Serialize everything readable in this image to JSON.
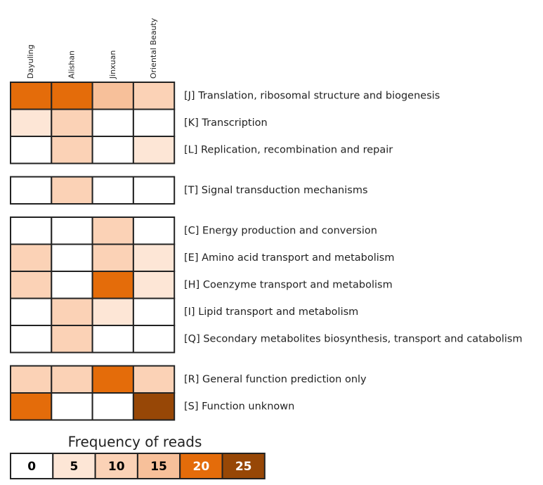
{
  "chart_data": {
    "type": "heatmap",
    "columns": [
      "Dayuling",
      "Alishan",
      "Jinxuan",
      "Oriental Beauty"
    ],
    "groups": [
      {
        "categories": [
          "[J] Translation, ribosomal structure and biogenesis",
          "[K] Transcription",
          "[L] Replication, recombination and repair"
        ],
        "values": [
          [
            20,
            20,
            15,
            10
          ],
          [
            5,
            10,
            0,
            0
          ],
          [
            0,
            10,
            0,
            5
          ]
        ]
      },
      {
        "categories": [
          "[T] Signal transduction mechanisms"
        ],
        "values": [
          [
            0,
            10,
            0,
            0
          ]
        ]
      },
      {
        "categories": [
          "[C] Energy production and conversion",
          "[E] Amino acid transport and metabolism",
          "[H] Coenzyme transport and metabolism",
          "[I] Lipid transport and metabolism",
          "[Q] Secondary metabolites biosynthesis, transport and catabolism"
        ],
        "values": [
          [
            0,
            0,
            10,
            0
          ],
          [
            10,
            0,
            10,
            5
          ],
          [
            10,
            0,
            20,
            5
          ],
          [
            0,
            10,
            5,
            0
          ],
          [
            0,
            10,
            0,
            0
          ]
        ]
      },
      {
        "categories": [
          "[R] General function prediction only",
          "[S] Function unknown"
        ],
        "values": [
          [
            10,
            10,
            20,
            10
          ],
          [
            20,
            0,
            0,
            25
          ]
        ]
      }
    ],
    "legend": {
      "title": "Frequency of reads",
      "values": [
        0,
        5,
        10,
        15,
        20,
        25
      ],
      "colors": [
        "#ffffff",
        "#fde6d6",
        "#fbd2b6",
        "#f7c09a",
        "#e46c0a",
        "#974706"
      ]
    }
  }
}
